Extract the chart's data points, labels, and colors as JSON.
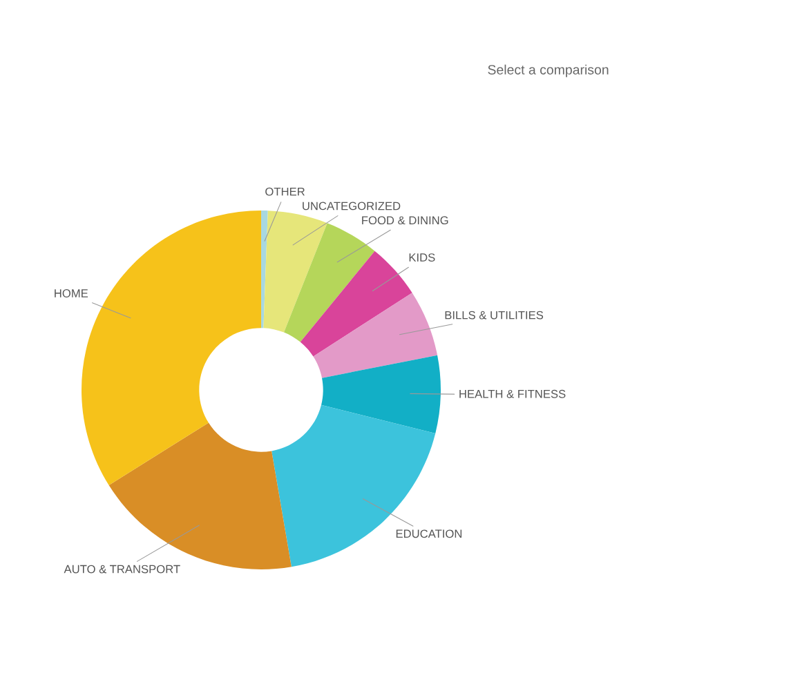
{
  "chart_data": {
    "type": "donut",
    "categories": [
      "OTHER",
      "UNCATEGORIZED",
      "FOOD & DINING",
      "KIDS",
      "BILLS & UTILITIES",
      "HEALTH & FITNESS",
      "EDUCATION",
      "AUTO & TRANSPORT",
      "HOME"
    ],
    "values": [
      0.6,
      5.4,
      4.9,
      5.0,
      6.0,
      7.0,
      18.4,
      18.8,
      33.9
    ],
    "colors": [
      "#a8d8e0",
      "#e6e67a",
      "#b5d65a",
      "#d9449a",
      "#e39ac8",
      "#12afc6",
      "#3cc3dc",
      "#d98e26",
      "#f6c21a"
    ],
    "annotations": [
      "Select a comparison"
    ]
  }
}
